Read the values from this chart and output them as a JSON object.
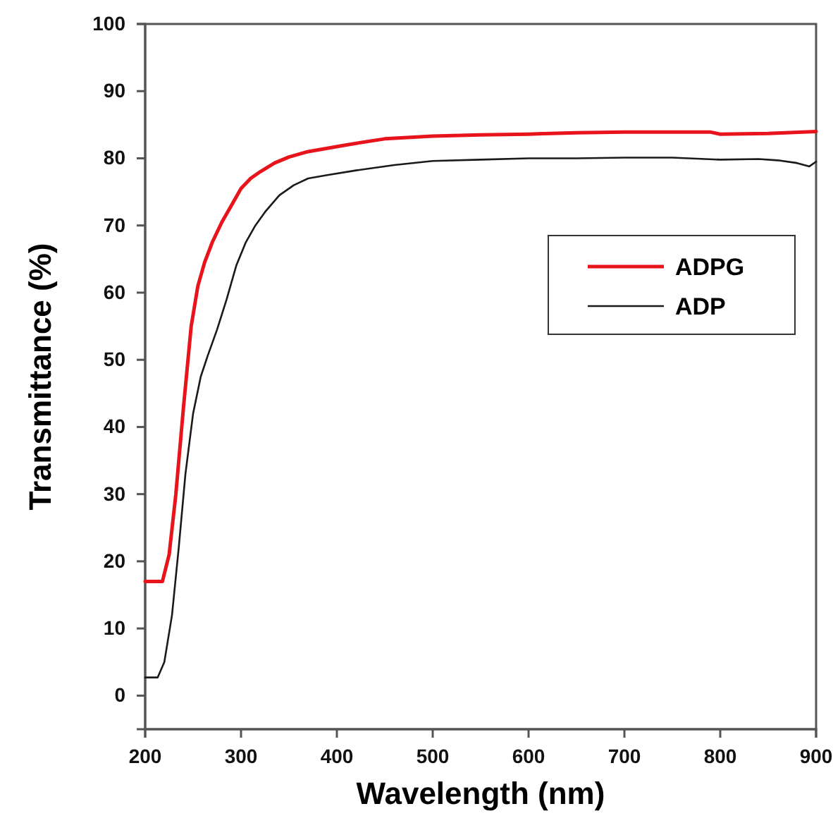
{
  "chart_data": {
    "type": "line",
    "xlabel": "Wavelength (nm)",
    "ylabel": "Transmittance (%)",
    "xlim": [
      200,
      900
    ],
    "xticks": [
      200,
      300,
      400,
      500,
      600,
      700,
      800,
      900
    ],
    "ylim": [
      -5,
      100
    ],
    "yticks": [
      0,
      10,
      20,
      30,
      40,
      50,
      60,
      70,
      80,
      90,
      100
    ],
    "grid": false,
    "legend": "right",
    "marker": "none",
    "line_style": "solid",
    "series": [
      {
        "name": "ADPG",
        "color": "#e8141c",
        "x": [
          200,
          218,
          225,
          232,
          240,
          248,
          255,
          262,
          270,
          280,
          290,
          300,
          310,
          320,
          335,
          350,
          370,
          390,
          410,
          450,
          500,
          550,
          600,
          650,
          700,
          750,
          790,
          800,
          850,
          900
        ],
        "values": [
          17,
          17,
          21,
          30,
          43,
          55,
          61,
          64.5,
          67.5,
          70.5,
          73,
          75.5,
          77,
          78,
          79.3,
          80.2,
          81,
          81.5,
          82,
          82.9,
          83.3,
          83.5,
          83.6,
          83.8,
          83.9,
          83.9,
          83.9,
          83.6,
          83.7,
          84
        ]
      },
      {
        "name": "ADP",
        "color": "#1a1a1a",
        "x": [
          200,
          213,
          220,
          228,
          235,
          242,
          250,
          258,
          265,
          275,
          285,
          295,
          305,
          315,
          325,
          340,
          355,
          370,
          390,
          420,
          460,
          500,
          550,
          600,
          650,
          700,
          750,
          800,
          840,
          860,
          880,
          893,
          900
        ],
        "values": [
          2.7,
          2.7,
          5,
          12,
          22,
          33,
          42,
          47.5,
          50.5,
          54.5,
          59,
          64,
          67.5,
          70,
          72,
          74.5,
          76,
          77,
          77.5,
          78.2,
          79,
          79.6,
          79.8,
          80,
          80,
          80.1,
          80.1,
          79.8,
          79.9,
          79.7,
          79.3,
          78.8,
          79.5
        ]
      }
    ]
  }
}
